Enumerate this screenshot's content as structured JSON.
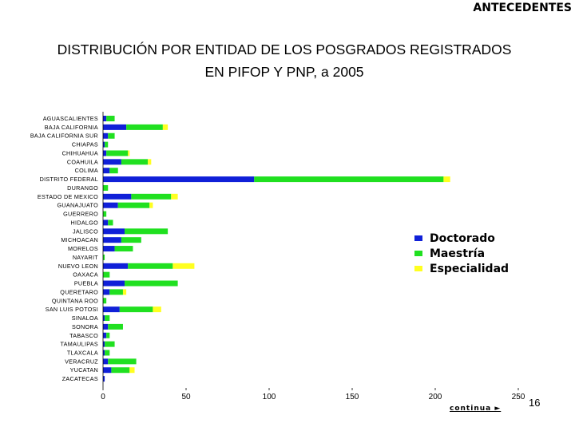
{
  "header": {
    "label": "ANTECEDENTES"
  },
  "title": {
    "line1": "DISTRIBUCIÓN POR ENTIDAD DE LOS POSGRADOS  REGISTRADOS",
    "line2": "EN PIFOP Y PNP,  a 2005"
  },
  "colors": {
    "doctorado": "#1020d8",
    "maestria": "#20e020",
    "especialidad": "#ffff20"
  },
  "chart_data": {
    "type": "bar",
    "orientation": "horizontal",
    "stacked": true,
    "categories": [
      "AGUASCALIENTES",
      "BAJA CALIFORNIA",
      "BAJA CALIFORNIA SUR",
      "CHIAPAS",
      "CHIHUAHUA",
      "COAHUILA",
      "COLIMA",
      "DISTRITO FEDERAL",
      "DURANGO",
      "ESTADO DE MEXICO",
      "GUANAJUATO",
      "GUERRERO",
      "HIDALGO",
      "JALISCO",
      "MICHOACAN",
      "MORELOS",
      "NAYARIT",
      "NUEVO LEON",
      "OAXACA",
      "PUEBLA",
      "QUERETARO",
      "QUINTANA ROO",
      "SAN LUIS POTOSI",
      "SINALOA",
      "SONORA",
      "TABASCO",
      "TAMAULIPAS",
      "TLAXCALA",
      "VERACRUZ",
      "YUCATAN",
      "ZACATECAS"
    ],
    "series": [
      {
        "name": "Doctorado",
        "values": [
          2,
          14,
          3,
          1,
          2,
          11,
          4,
          91,
          0,
          17,
          9,
          0,
          3,
          13,
          11,
          7,
          0,
          15,
          0,
          13,
          4,
          0,
          10,
          1,
          3,
          2,
          1,
          1,
          3,
          5,
          1
        ]
      },
      {
        "name": "Maestría",
        "values": [
          5,
          22,
          4,
          2,
          13,
          16,
          5,
          114,
          3,
          24,
          19,
          2,
          3,
          26,
          12,
          11,
          1,
          27,
          4,
          32,
          8,
          2,
          20,
          3,
          9,
          2,
          6,
          3,
          17,
          11,
          0
        ]
      },
      {
        "name": "Especialidad",
        "values": [
          0,
          3,
          0,
          0,
          1,
          2,
          0,
          4,
          0,
          4,
          2,
          0,
          0,
          0,
          0,
          0,
          0,
          13,
          0,
          0,
          2,
          0,
          5,
          0,
          0,
          0,
          0,
          0,
          0,
          3,
          0
        ]
      }
    ],
    "xticks": [
      "0",
      "50",
      "100",
      "150",
      "200",
      "250"
    ],
    "xlim": [
      0,
      250
    ],
    "legend_position": "right",
    "grid": false
  },
  "footer": {
    "continue_label": "continua ►",
    "page_number": "16"
  }
}
